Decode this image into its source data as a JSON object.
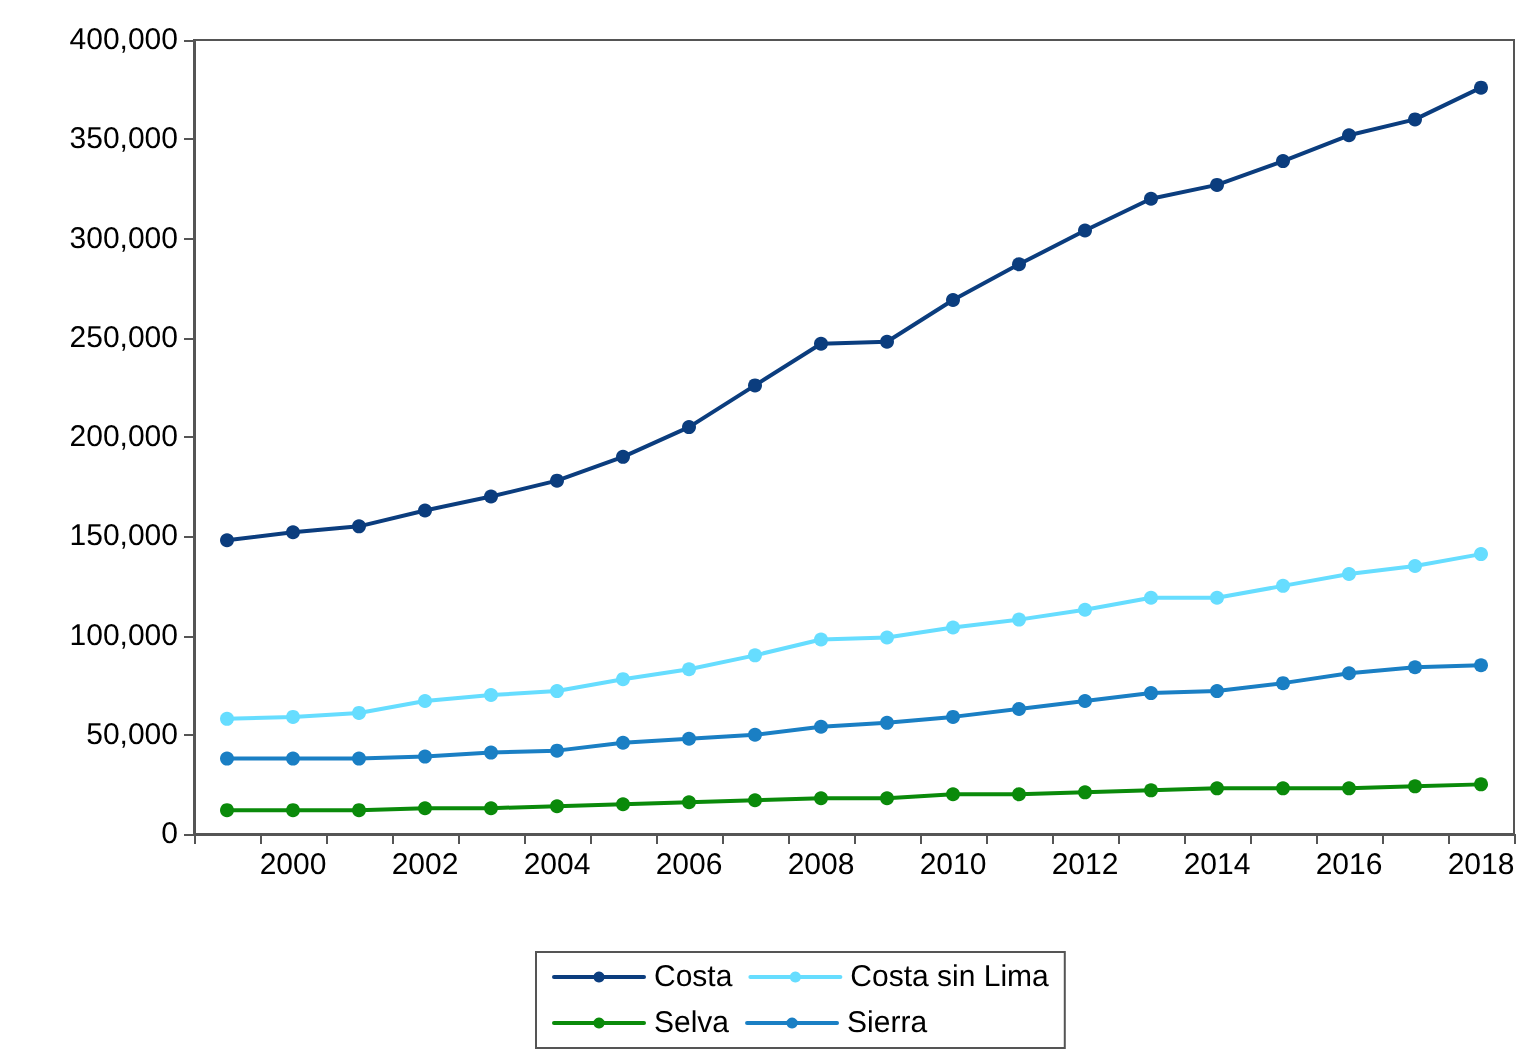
{
  "chart_data": {
    "type": "line",
    "categories": [
      null,
      "2000",
      null,
      "2002",
      null,
      "2004",
      null,
      "2006",
      null,
      "2008",
      null,
      "2010",
      null,
      "2012",
      null,
      "2014",
      null,
      "2016",
      null,
      "2018"
    ],
    "series": [
      {
        "name": "Costa",
        "color": "#0b3d7e",
        "values": [
          148000,
          152000,
          155000,
          163000,
          170000,
          178000,
          190000,
          205000,
          226000,
          247000,
          248000,
          269000,
          287000,
          304000,
          320000,
          327000,
          339000,
          352000,
          360000,
          376000
        ]
      },
      {
        "name": "Costa sin Lima",
        "color": "#66ddff",
        "values": [
          58000,
          59000,
          61000,
          67000,
          70000,
          72000,
          78000,
          83000,
          90000,
          98000,
          99000,
          104000,
          108000,
          113000,
          119000,
          119000,
          125000,
          131000,
          135000,
          141000
        ]
      },
      {
        "name": "Selva",
        "color": "#0a8a0a",
        "values": [
          12000,
          12000,
          12000,
          13000,
          13000,
          14000,
          15000,
          16000,
          17000,
          18000,
          18000,
          20000,
          20000,
          21000,
          22000,
          23000,
          23000,
          23000,
          24000,
          25000
        ]
      },
      {
        "name": "Sierra",
        "color": "#1a7fc4",
        "values": [
          38000,
          38000,
          38000,
          39000,
          41000,
          42000,
          46000,
          48000,
          50000,
          54000,
          56000,
          59000,
          63000,
          67000,
          71000,
          72000,
          76000,
          81000,
          84000,
          85000
        ]
      }
    ],
    "ylim": [
      0,
      400000
    ],
    "yticks": [
      0,
      {
        "value": 50000,
        "label": "50,000"
      },
      {
        "value": 100000,
        "label": "100,000"
      },
      {
        "value": 150000,
        "label": "150,000"
      },
      {
        "value": 200000,
        "label": "200,000"
      },
      {
        "value": 250000,
        "label": "250,000"
      },
      {
        "value": 300000,
        "label": "300,000"
      },
      {
        "value": 350000,
        "label": "350,000"
      },
      {
        "value": 400000,
        "label": "400,000"
      }
    ],
    "grid": false,
    "legend": "bottom",
    "marker": "circle",
    "line_style": "solid"
  }
}
